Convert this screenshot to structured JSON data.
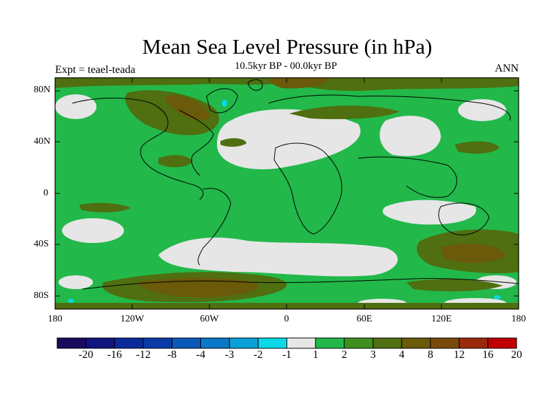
{
  "title": "Mean Sea Level Pressure (in hPa)",
  "subtitle": "10.5kyr BP - 00.0kyr BP",
  "experiment": "Expt = teael-teada",
  "season": "ANN",
  "lat_ticks": [
    "80N",
    "40N",
    "0",
    "40S",
    "80S"
  ],
  "lon_ticks": [
    "180",
    "120W",
    "60W",
    "0",
    "60E",
    "120E",
    "180"
  ],
  "colorbar": {
    "labels": [
      "-20",
      "-16",
      "-12",
      "-8",
      "-4",
      "-3",
      "-2",
      "-1",
      "1",
      "2",
      "3",
      "4",
      "8",
      "12",
      "16",
      "20"
    ],
    "colors": [
      "#1a0a5e",
      "#0f147e",
      "#0a2a9a",
      "#0a3aa8",
      "#0a58b8",
      "#0a78c8",
      "#0aa0d8",
      "#0ad8e8",
      "#e6e6e6",
      "#22b84a",
      "#3f8f1f",
      "#4f6f10",
      "#6a5a0a",
      "#7a4a0a",
      "#9a2a0a",
      "#c00000"
    ]
  },
  "colors": {
    "land_green": "#22b84a",
    "neutral": "#e6e6e6",
    "olive": "#4f6f10",
    "brown": "#6a5a0a",
    "cyan": "#0ad8e8"
  }
}
